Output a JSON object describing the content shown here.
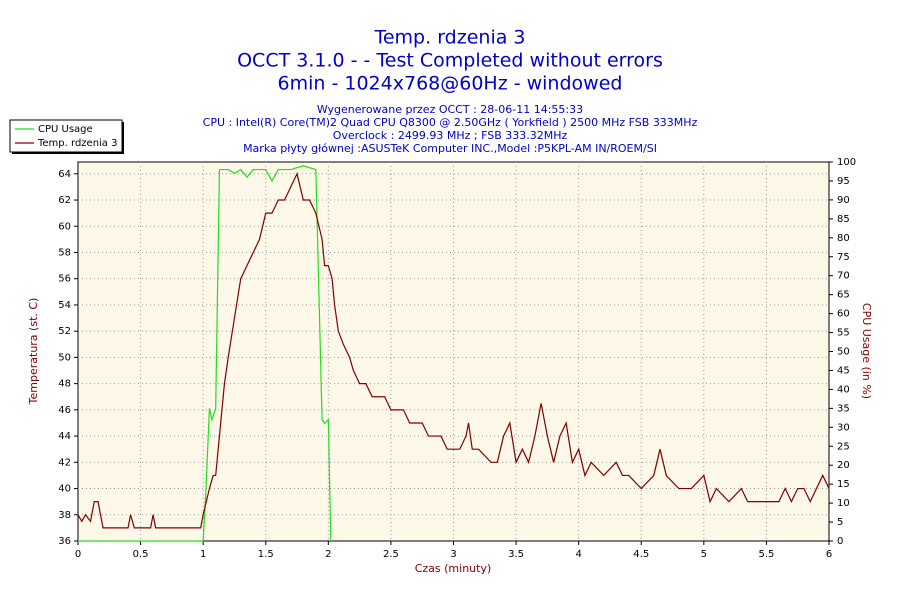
{
  "chart_data": {
    "type": "line",
    "title": [
      "Temp. rdzenia 3",
      "OCCT 3.1.0 -  - Test Completed without errors",
      "6min - 1024x768@60Hz - windowed"
    ],
    "subtitle": [
      "Wygenerowane przez OCCT : 28-06-11 14:55:33",
      "CPU : Intel(R) Core(TM)2 Quad CPU Q8300 @ 2.50GHz ( Yorkfield ) 2500 MHz FSB 333MHz",
      "Overclock : 2499.93 MHz ; FSB 333.32MHz",
      "Marka płyty głównej :ASUSTeK Computer INC.,Model :P5KPL-AM IN/ROEM/SI"
    ],
    "x_label": "Czas (minuty)",
    "y_label": "Temperatura (st. C)",
    "y2_label": "CPU Usage (in %)",
    "xlim": [
      0,
      6
    ],
    "xticks": [
      0,
      0.5,
      1,
      1.5,
      2,
      2.5,
      3,
      3.5,
      4,
      4.5,
      5,
      5.5,
      6
    ],
    "ylim": [
      36,
      64.9
    ],
    "yticks": [
      36,
      38,
      40,
      42,
      44,
      46,
      48,
      50,
      52,
      54,
      56,
      58,
      60,
      62,
      64
    ],
    "y2lim": [
      0,
      100
    ],
    "y2ticks": [
      0,
      5,
      10,
      15,
      20,
      25,
      30,
      35,
      40,
      45,
      50,
      55,
      60,
      65,
      70,
      75,
      80,
      85,
      90,
      95,
      100
    ],
    "grid": true,
    "legend": "top-left",
    "series": [
      {
        "name": "CPU Usage",
        "color": "#22dd22",
        "axis": "y2",
        "x": [
          0,
          1.0,
          1.02,
          1.05,
          1.07,
          1.1,
          1.13,
          1.2,
          1.25,
          1.3,
          1.35,
          1.4,
          1.5,
          1.55,
          1.6,
          1.7,
          1.8,
          1.9,
          1.95,
          1.97,
          2.0,
          2.02
        ],
        "values": [
          0,
          0,
          12,
          35,
          32,
          35,
          98,
          98,
          97,
          98,
          96,
          98,
          98,
          95,
          98,
          98,
          99,
          98,
          32,
          31,
          32,
          0
        ]
      },
      {
        "name": "Temp. rdzenia 3",
        "color": "#800000",
        "x": [
          0,
          0.03,
          0.06,
          0.1,
          0.13,
          0.16,
          0.2,
          0.4,
          0.42,
          0.45,
          0.58,
          0.6,
          0.62,
          0.98,
          1.0,
          1.05,
          1.08,
          1.1,
          1.13,
          1.17,
          1.2,
          1.25,
          1.3,
          1.35,
          1.4,
          1.45,
          1.5,
          1.55,
          1.6,
          1.65,
          1.7,
          1.75,
          1.8,
          1.85,
          1.9,
          1.95,
          1.97,
          2.0,
          2.03,
          2.05,
          2.08,
          2.12,
          2.17,
          2.2,
          2.25,
          2.3,
          2.35,
          2.45,
          2.5,
          2.6,
          2.65,
          2.75,
          2.8,
          2.9,
          2.95,
          3.0,
          3.05,
          3.1,
          3.12,
          3.15,
          3.2,
          3.3,
          3.35,
          3.4,
          3.45,
          3.5,
          3.55,
          3.6,
          3.65,
          3.7,
          3.75,
          3.8,
          3.85,
          3.9,
          3.95,
          4.0,
          4.05,
          4.1,
          4.2,
          4.3,
          4.35,
          4.4,
          4.5,
          4.6,
          4.65,
          4.7,
          4.8,
          4.9,
          5.0,
          5.05,
          5.1,
          5.2,
          5.3,
          5.35,
          5.6,
          5.65,
          5.7,
          5.75,
          5.8,
          5.85,
          5.9,
          5.95,
          6.0
        ],
        "values": [
          38,
          37.5,
          38,
          37.5,
          39,
          39,
          37,
          37,
          38,
          37,
          37,
          38,
          37,
          37,
          38,
          40,
          41,
          41,
          44,
          48,
          50,
          53,
          56,
          57,
          58,
          59,
          61,
          61,
          62,
          62,
          63,
          64,
          62,
          62,
          61,
          59,
          57,
          57,
          56,
          54,
          52,
          51,
          50,
          49,
          48,
          48,
          47,
          47,
          46,
          46,
          45,
          45,
          44,
          44,
          43,
          43,
          43,
          44,
          45,
          43,
          43,
          42,
          42,
          44,
          45,
          42,
          43,
          42,
          44,
          46.5,
          44,
          42,
          44,
          45,
          42,
          43,
          41,
          42,
          41,
          42,
          41,
          41,
          40,
          41,
          43,
          41,
          40,
          40,
          41,
          39,
          40,
          39,
          40,
          39,
          39,
          40,
          39,
          40,
          40,
          39,
          40,
          41,
          40
        ]
      }
    ]
  }
}
